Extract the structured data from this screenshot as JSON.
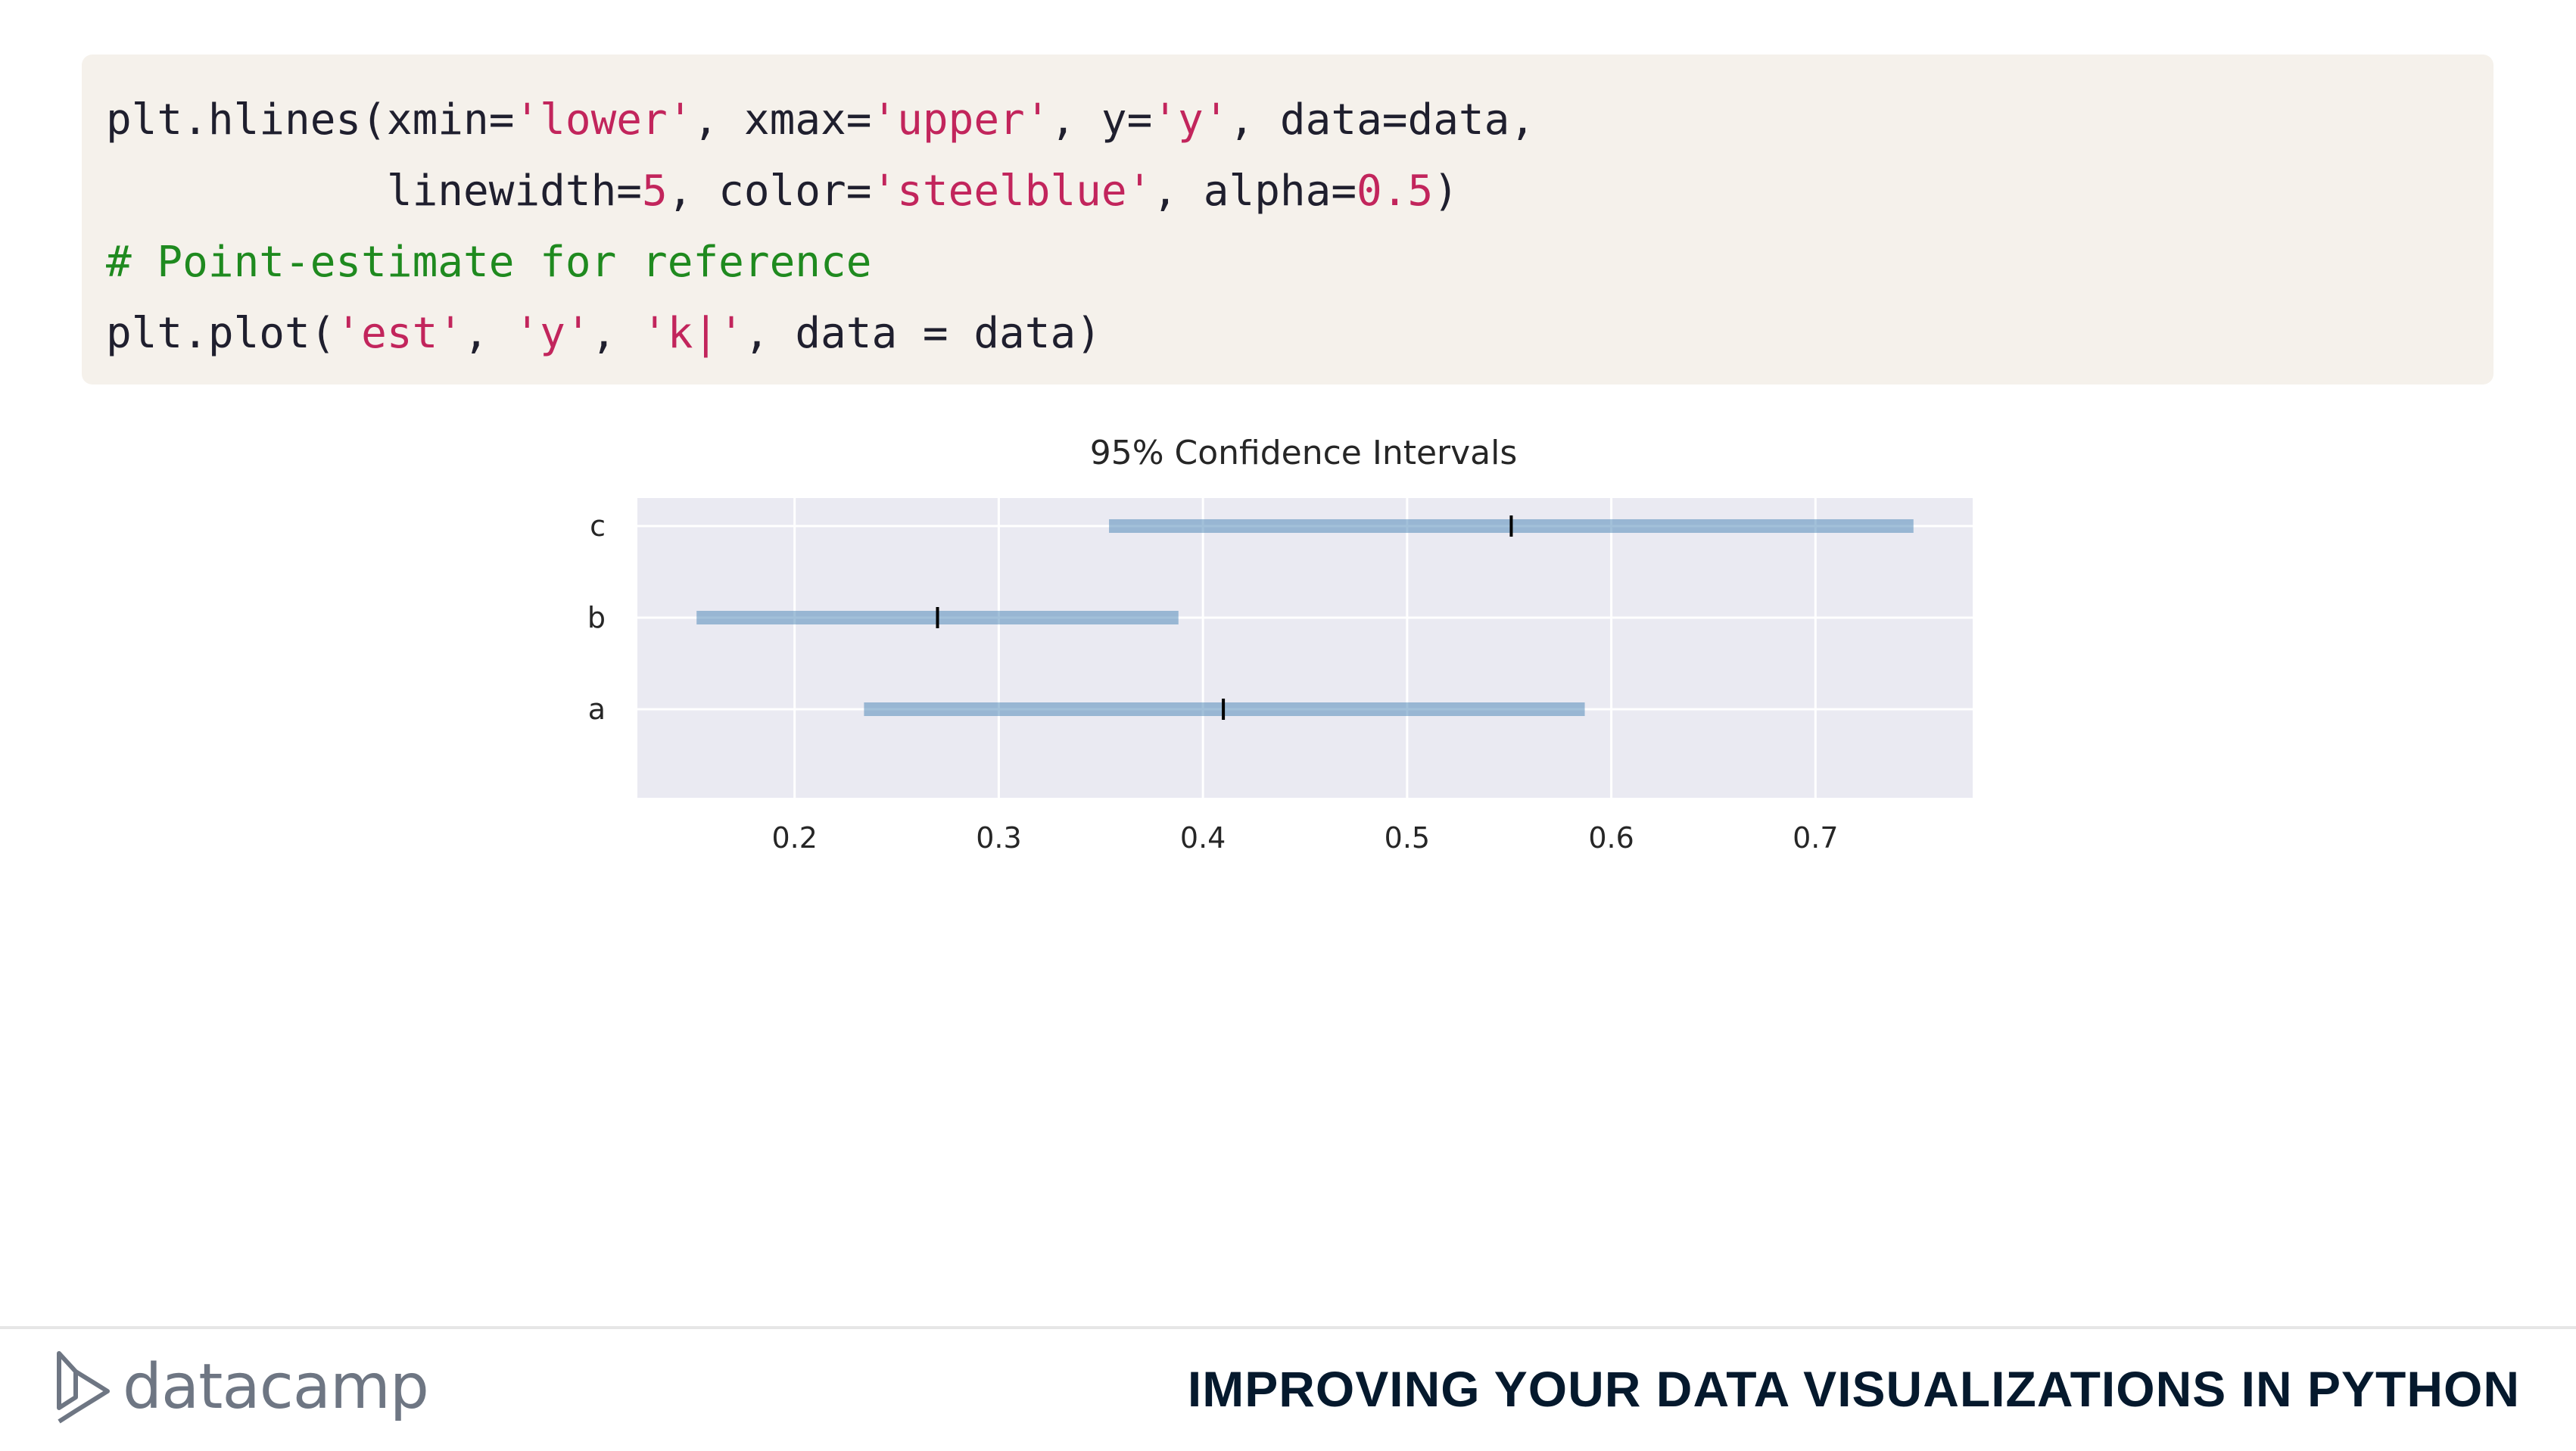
{
  "code": {
    "lines": [
      [
        {
          "t": "plt.hlines(xmin=",
          "k": "plain"
        },
        {
          "t": "'lower'",
          "k": "str"
        },
        {
          "t": ", xmax=",
          "k": "plain"
        },
        {
          "t": "'upper'",
          "k": "str"
        },
        {
          "t": ", y=",
          "k": "plain"
        },
        {
          "t": "'y'",
          "k": "str"
        },
        {
          "t": ", data=data,",
          "k": "plain"
        }
      ],
      [
        {
          "t": "           linewidth=",
          "k": "plain"
        },
        {
          "t": "5",
          "k": "num"
        },
        {
          "t": ", color=",
          "k": "plain"
        },
        {
          "t": "'steelblue'",
          "k": "str"
        },
        {
          "t": ", alpha=",
          "k": "plain"
        },
        {
          "t": "0.5",
          "k": "num"
        },
        {
          "t": ")",
          "k": "plain"
        }
      ],
      [
        {
          "t": "# Point-estimate for reference",
          "k": "cmt"
        }
      ],
      [
        {
          "t": "plt.plot(",
          "k": "plain"
        },
        {
          "t": "'est'",
          "k": "str"
        },
        {
          "t": ", ",
          "k": "plain"
        },
        {
          "t": "'y'",
          "k": "str"
        },
        {
          "t": ", ",
          "k": "plain"
        },
        {
          "t": "'k|'",
          "k": "str"
        },
        {
          "t": ", data = data)",
          "k": "plain"
        }
      ]
    ]
  },
  "chart_data": {
    "type": "errorbar",
    "title": "95% Confidence Intervals",
    "xlabel": "",
    "ylabel": "",
    "xlim": [
      0.123,
      0.777
    ],
    "xticks": [
      0.2,
      0.3,
      0.4,
      0.5,
      0.6,
      0.7
    ],
    "xtick_labels": [
      "0.2",
      "0.3",
      "0.4",
      "0.5",
      "0.6",
      "0.7"
    ],
    "categories": [
      "a",
      "b",
      "c"
    ],
    "intervals": [
      {
        "y": "a",
        "lower": 0.234,
        "upper": 0.587,
        "est": 0.41
      },
      {
        "y": "b",
        "lower": 0.152,
        "upper": 0.388,
        "est": 0.27
      },
      {
        "y": "c",
        "lower": 0.354,
        "upper": 0.748,
        "est": 0.551
      }
    ],
    "grid": true,
    "colors": {
      "interval": "#4682b4",
      "estimate": "#000000",
      "background": "#eaeaf2",
      "grid": "#ffffff"
    }
  },
  "footer": {
    "logo_text": "datacamp",
    "course_title": "IMPROVING YOUR DATA VISUALIZATIONS IN PYTHON"
  }
}
